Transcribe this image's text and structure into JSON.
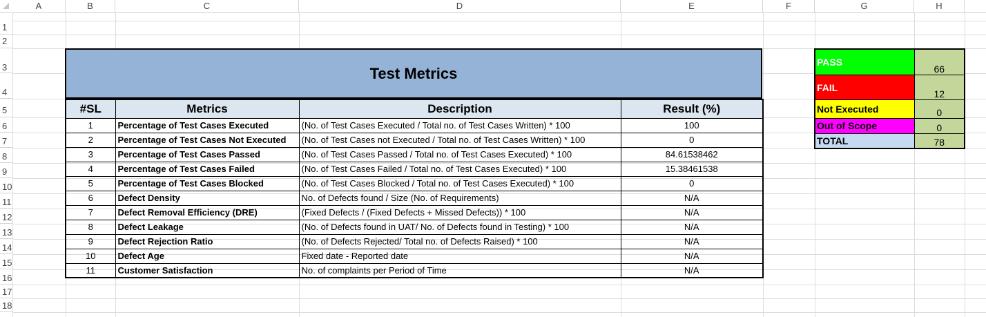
{
  "spreadsheet": {
    "columns": [
      "A",
      "B",
      "C",
      "D",
      "E",
      "F",
      "G",
      "H"
    ],
    "rows": [
      "1",
      "2",
      "3",
      "4",
      "5",
      "6",
      "7",
      "8",
      "9",
      "10",
      "11",
      "12",
      "13",
      "14",
      "15",
      "16",
      "17",
      "18"
    ]
  },
  "metrics": {
    "title": "Test Metrics",
    "headers": {
      "sl": "#SL",
      "metric": "Metrics",
      "description": "Description",
      "result": "Result (%)"
    },
    "rows": [
      {
        "sl": "1",
        "metric": "Percentage of Test Cases Executed",
        "description": "(No. of Test Cases Executed / Total no. of Test Cases Written) * 100",
        "result": "100"
      },
      {
        "sl": "2",
        "metric": "Percentage of Test Cases Not Executed",
        "description": "(No. of Test Cases not Executed / Total no. of Test Cases Written) * 100",
        "result": "0"
      },
      {
        "sl": "3",
        "metric": "Percentage of Test Cases Passed",
        "description": "(No. of Test Cases Passed / Total no. of Test Cases Executed) * 100",
        "result": "84.61538462"
      },
      {
        "sl": "4",
        "metric": "Percentage of Test Cases Failed",
        "description": "(No. of Test Cases Failed / Total no. of Test Cases Executed) * 100",
        "result": "15.38461538"
      },
      {
        "sl": "5",
        "metric": "Percentage of Test Cases Blocked",
        "description": "(No. of Test Cases Blocked / Total no. of Test Cases Executed) * 100",
        "result": "0"
      },
      {
        "sl": "6",
        "metric": "Defect Density",
        "description": "No. of Defects found / Size (No. of Requirements)",
        "result": "N/A"
      },
      {
        "sl": "7",
        "metric": "Defect Removal Efficiency (DRE)",
        "description": "(Fixed Defects / (Fixed Defects + Missed Defects)) * 100",
        "result": "N/A"
      },
      {
        "sl": "8",
        "metric": "Defect Leakage",
        "description": "(No. of Defects found in UAT/ No. of Defects found in Testing) * 100",
        "result": "N/A"
      },
      {
        "sl": "9",
        "metric": "Defect Rejection Ratio",
        "description": "(No. of Defects Rejected/ Total no. of Defects Raised) * 100",
        "result": "N/A"
      },
      {
        "sl": "10",
        "metric": "Defect Age",
        "description": "Fixed date - Reported date",
        "result": "N/A"
      },
      {
        "sl": "11",
        "metric": "Customer Satisfaction",
        "description": "No. of complaints per Period of Time",
        "result": "N/A"
      }
    ]
  },
  "summary": {
    "rows": [
      {
        "label": "PASS",
        "value": "66",
        "bg": "#00ff00",
        "fg": "#ffffff"
      },
      {
        "label": "FAIL",
        "value": "12",
        "bg": "#ff0000",
        "fg": "#ffffff"
      },
      {
        "label": "Not Executed",
        "value": "0",
        "bg": "#ffff00",
        "fg": "#000000"
      },
      {
        "label": "Out of Scope",
        "value": "0",
        "bg": "#ff00ff",
        "fg": "#000000"
      },
      {
        "label": "TOTAL",
        "value": "78",
        "bg": "#c5d9f1",
        "fg": "#000000"
      }
    ]
  },
  "colors": {
    "title_bg": "#95b3d7",
    "header_bg": "#dce6f1",
    "value_bg": "#c4d79b"
  }
}
